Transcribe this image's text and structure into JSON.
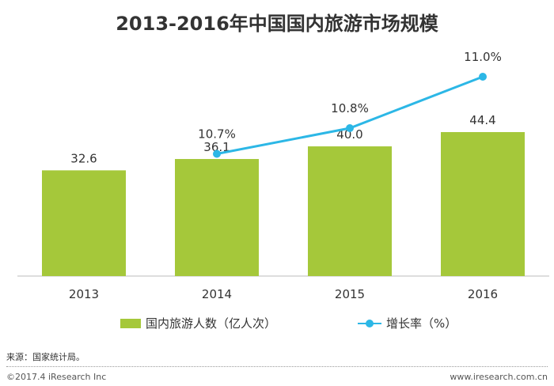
{
  "chart_data": {
    "type": "bar",
    "title": "2013-2016年中国国内旅游市场规模",
    "categories": [
      "2013",
      "2014",
      "2015",
      "2016"
    ],
    "series": [
      {
        "name": "国内旅游人数（亿人次）",
        "type": "bar",
        "values": [
          32.6,
          36.1,
          40.0,
          44.4
        ],
        "labels": [
          "32.6",
          "36.1",
          "40.0",
          "44.4"
        ],
        "color": "#a5c83a"
      },
      {
        "name": "增长率（%）",
        "type": "line",
        "values": [
          null,
          10.7,
          10.8,
          11.0
        ],
        "labels": [
          "",
          "10.7%",
          "10.8%",
          "11.0%"
        ],
        "color": "#2cb7e6"
      }
    ],
    "legend_position": "bottom",
    "grid": false
  },
  "footer": {
    "source": "来源：国家统计局。",
    "copyright": "©2017.4 iResearch Inc",
    "website": "www.iresearch.com.cn"
  }
}
